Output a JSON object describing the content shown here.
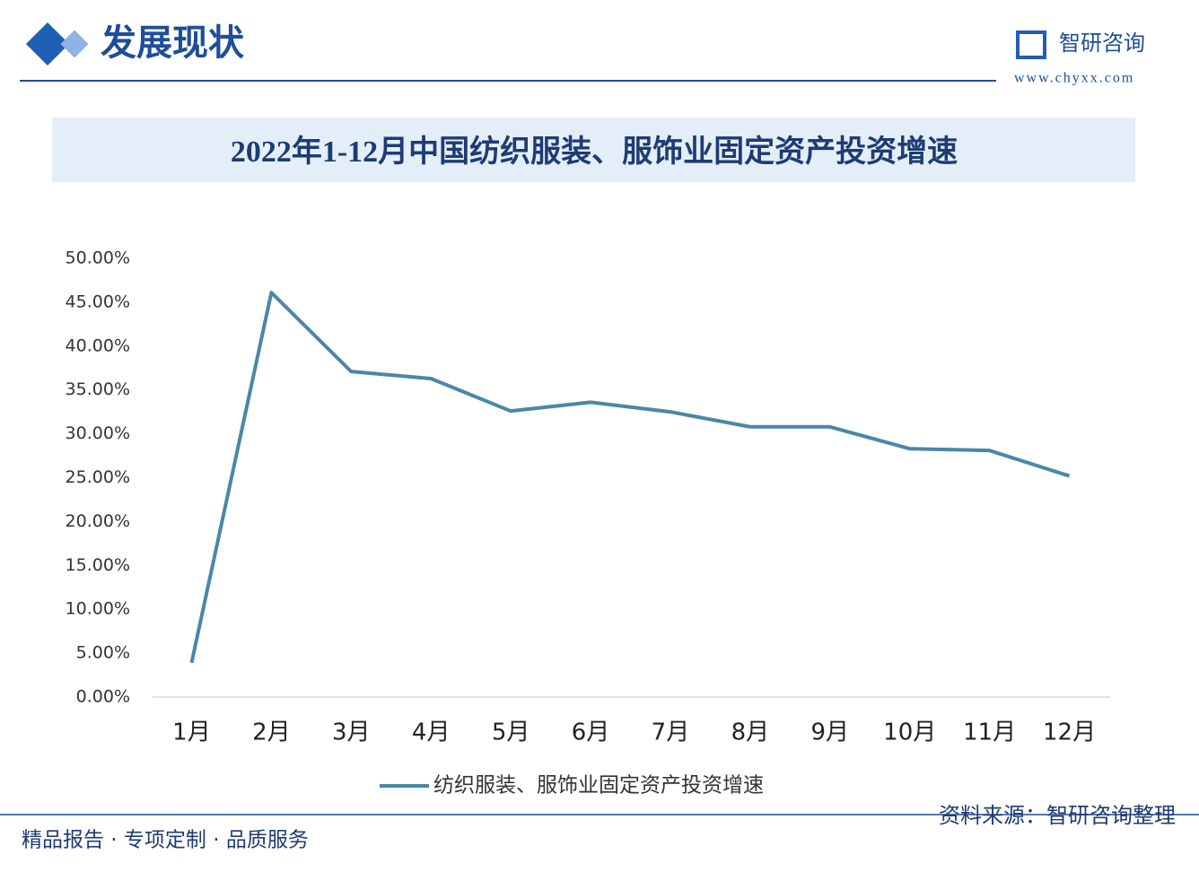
{
  "header": {
    "title": "发展现状",
    "brand": "智研咨询",
    "url": "www.chyxx.com"
  },
  "footer": {
    "slogan": "精品报告 · 专项定制 · 品质服务",
    "source": "资料来源：智研咨询整理"
  },
  "chart_data": {
    "type": "line",
    "title": "2022年1-12月中国纺织服装、服饰业固定资产投资增速",
    "categories": [
      "1月",
      "2月",
      "3月",
      "4月",
      "5月",
      "6月",
      "7月",
      "8月",
      "9月",
      "10月",
      "11月",
      "12月"
    ],
    "series": [
      {
        "name": "纺织服装、服饰业固定资产投资增速",
        "color": "#4a87a8",
        "values": [
          3.9,
          46.1,
          37.1,
          36.3,
          32.6,
          33.6,
          32.5,
          30.8,
          30.8,
          28.3,
          28.1,
          25.2
        ]
      }
    ],
    "ylim": [
      0,
      50
    ],
    "yticks": [
      {
        "value": 0,
        "label": "0.00%"
      },
      {
        "value": 5,
        "label": "5.00%"
      },
      {
        "value": 10,
        "label": "10.00%"
      },
      {
        "value": 15,
        "label": "15.00%"
      },
      {
        "value": 20,
        "label": "20.00%"
      },
      {
        "value": 25,
        "label": "25.00%"
      },
      {
        "value": 30,
        "label": "30.00%"
      },
      {
        "value": 35,
        "label": "35.00%"
      },
      {
        "value": 40,
        "label": "40.00%"
      },
      {
        "value": 45,
        "label": "45.00%"
      },
      {
        "value": 50,
        "label": "50.00%"
      }
    ],
    "grid": false,
    "legend": "bottom"
  }
}
